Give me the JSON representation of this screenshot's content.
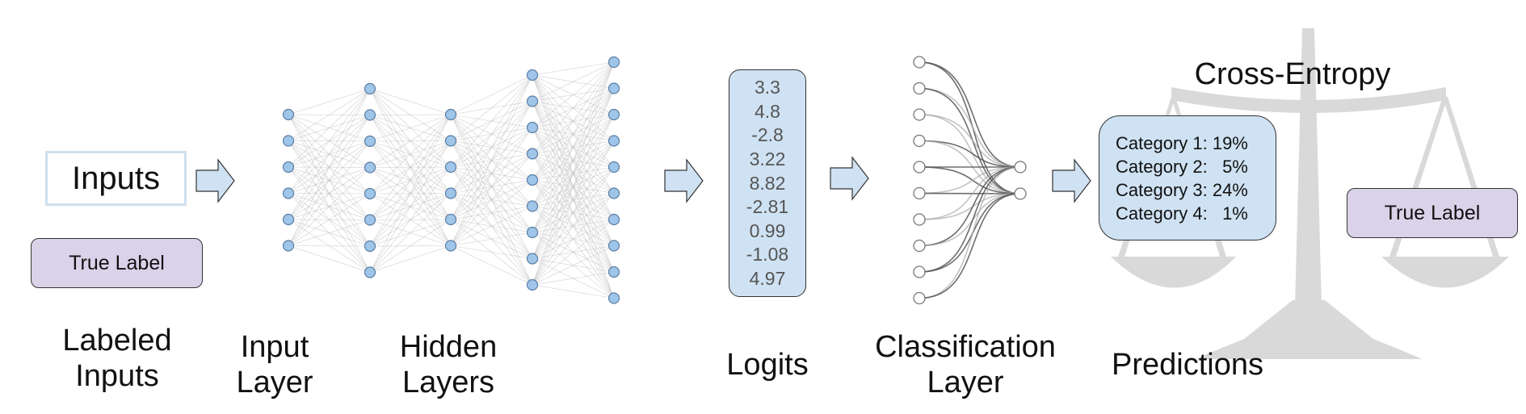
{
  "inputs_box": {
    "label": "Inputs"
  },
  "true_label_left": "True Label",
  "true_label_right": "True Label",
  "logits": [
    "3.3",
    "4.8",
    "-2.8",
    "3.22",
    "8.82",
    "-2.81",
    "0.99",
    "-1.08",
    "4.97"
  ],
  "predictions": [
    {
      "text": "Category 1: 19%"
    },
    {
      "text": "Category 2:   5%"
    },
    {
      "text": "Category 3: 24%"
    },
    {
      "text": "Category 4:   1%"
    }
  ],
  "loss_title": "Cross-Entropy",
  "captions": {
    "labeled_inputs": [
      "Labeled",
      "Inputs"
    ],
    "input_layer": [
      "Input",
      "Layer"
    ],
    "hidden_layers": [
      "Hidden",
      "Layers"
    ],
    "logits": [
      "Logits"
    ],
    "classification_layer": [
      "Classification",
      "Layer"
    ],
    "predictions": [
      "Predictions"
    ]
  },
  "colors": {
    "neuron_fill": "#9fc5e8",
    "neuron_stroke": "#5b7fa6",
    "box_blue": "#cfe2f3",
    "box_purple": "#d9d2e9",
    "arrow_fill": "#cfe2f3",
    "scale_gray": "#d9d9d9",
    "edge_gray": "#bdbdbd"
  }
}
